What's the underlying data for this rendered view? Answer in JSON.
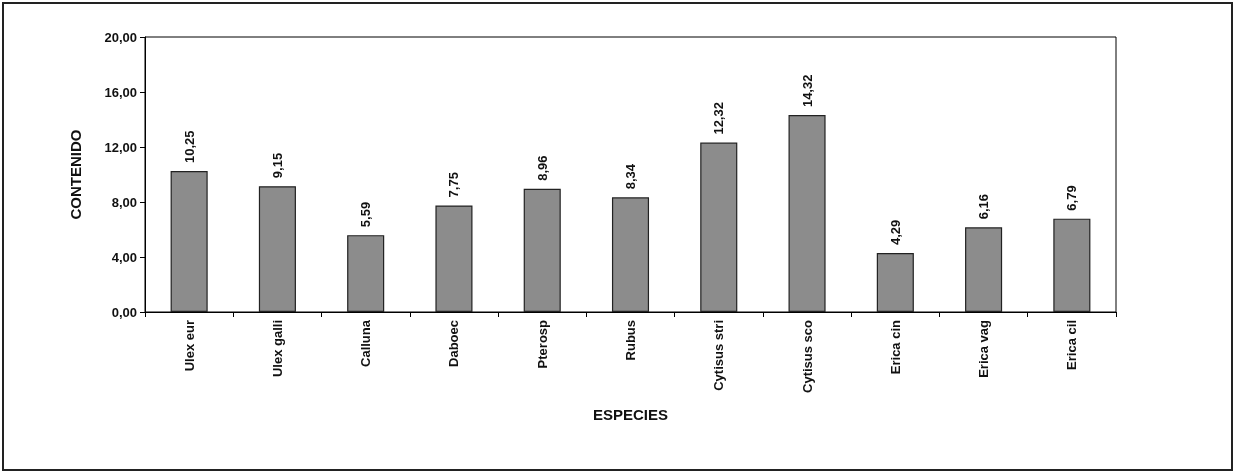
{
  "chart_data": {
    "type": "bar",
    "xlabel": "ESPECIES",
    "ylabel": "CONTENIDO",
    "categories": [
      "Ulex eur",
      "Ulex galli",
      "Calluna",
      "Daboec",
      "Pterosp",
      "Rubus",
      "Cytisus stri",
      "Cytisus sco",
      "Erica cin",
      "Erica vag",
      "Erica cil"
    ],
    "values": [
      10.25,
      9.15,
      5.59,
      7.75,
      8.96,
      8.34,
      12.32,
      14.32,
      4.29,
      6.16,
      6.79
    ],
    "value_labels": [
      "10,25",
      "9,15",
      "5,59",
      "7,75",
      "8,96",
      "8,34",
      "12,32",
      "14,32",
      "4,29",
      "6,16",
      "6,79"
    ],
    "color": "#8c8c8c",
    "ylim": [
      0,
      20
    ],
    "yticks": [
      {
        "value": 0,
        "label": "0,00"
      },
      {
        "value": 4,
        "label": "4,00"
      },
      {
        "value": 8,
        "label": "8,00"
      },
      {
        "value": 12,
        "label": "12,00"
      },
      {
        "value": 16,
        "label": "16,00"
      },
      {
        "value": 20,
        "label": "20,00"
      }
    ],
    "grid": false
  }
}
